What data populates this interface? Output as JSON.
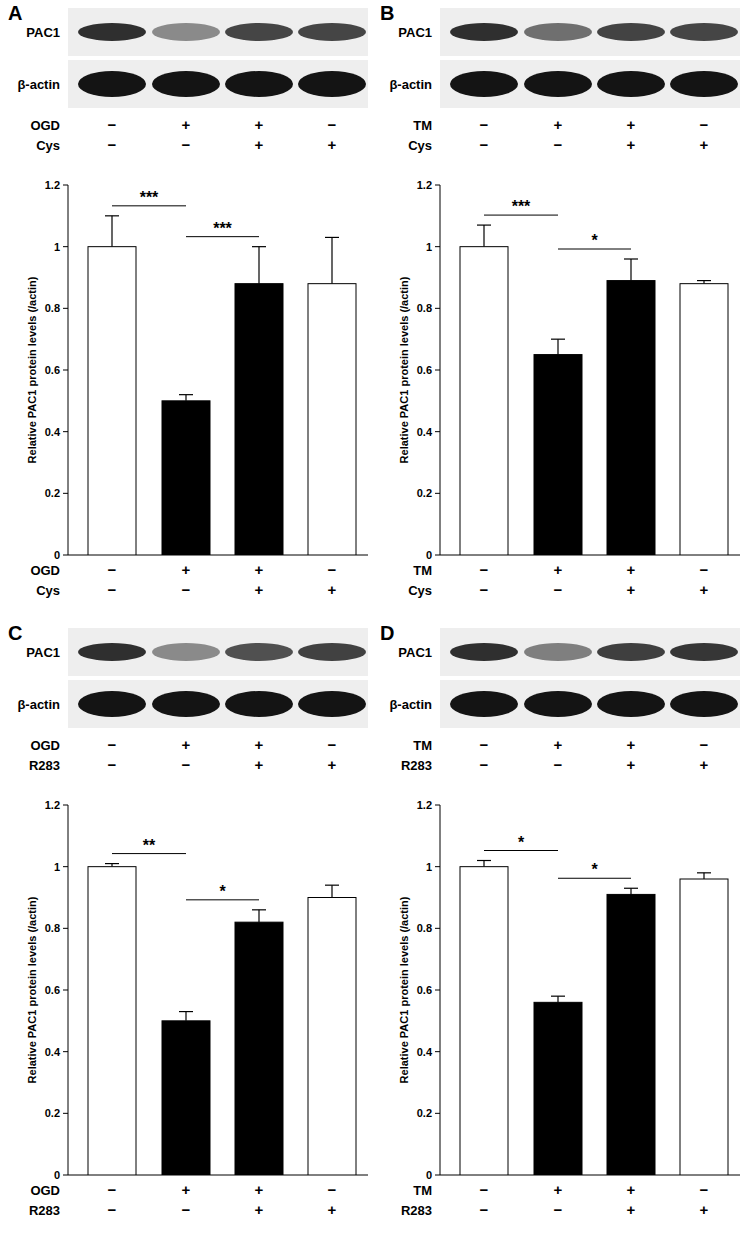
{
  "chart_data": [
    {
      "type": "bar",
      "panel": "A",
      "blots": [
        "PAC1",
        "β-actin"
      ],
      "y_label": "Relative PAC1 protein levels (/actin)",
      "categories": [
        null,
        null,
        null,
        null
      ],
      "treatments": [
        {
          "name": "OGD",
          "signs": [
            "−",
            "+",
            "+",
            "−"
          ]
        },
        {
          "name": "Cys",
          "signs": [
            "−",
            "−",
            "+",
            "+"
          ]
        }
      ],
      "values": [
        1.0,
        0.5,
        0.88,
        0.88
      ],
      "errors": [
        0.1,
        0.02,
        0.12,
        0.15
      ],
      "colors": [
        "#ffffff",
        "#000000",
        "#000000",
        "#ffffff"
      ],
      "significance": [
        {
          "from": 0,
          "to": 1,
          "label": "***"
        },
        {
          "from": 1,
          "to": 2,
          "label": "***"
        }
      ],
      "ylim": [
        0,
        1.2
      ],
      "yticks": [
        0,
        0.2,
        0.4,
        0.6,
        0.8,
        1,
        1.2
      ]
    },
    {
      "type": "bar",
      "panel": "B",
      "blots": [
        "PAC1",
        "β-actin"
      ],
      "y_label": "Relative PAC1 protein levels (/actin)",
      "categories": [
        null,
        null,
        null,
        null
      ],
      "treatments": [
        {
          "name": "TM",
          "signs": [
            "−",
            "+",
            "+",
            "−"
          ]
        },
        {
          "name": "Cys",
          "signs": [
            "−",
            "−",
            "+",
            "+"
          ]
        }
      ],
      "values": [
        1.0,
        0.65,
        0.89,
        0.88
      ],
      "errors": [
        0.07,
        0.05,
        0.07,
        0.01
      ],
      "colors": [
        "#ffffff",
        "#000000",
        "#000000",
        "#ffffff"
      ],
      "significance": [
        {
          "from": 0,
          "to": 1,
          "label": "***"
        },
        {
          "from": 1,
          "to": 2,
          "label": "*"
        }
      ],
      "ylim": [
        0,
        1.2
      ],
      "yticks": [
        0,
        0.2,
        0.4,
        0.6,
        0.8,
        1,
        1.2
      ]
    },
    {
      "type": "bar",
      "panel": "C",
      "blots": [
        "PAC1",
        "β-actin"
      ],
      "y_label": "Relative PAC1 protein levels (/actin)",
      "categories": [
        null,
        null,
        null,
        null
      ],
      "treatments": [
        {
          "name": "OGD",
          "signs": [
            "−",
            "+",
            "+",
            "−"
          ]
        },
        {
          "name": "R283",
          "signs": [
            "−",
            "−",
            "+",
            "+"
          ]
        }
      ],
      "values": [
        1.0,
        0.5,
        0.82,
        0.9
      ],
      "errors": [
        0.01,
        0.03,
        0.04,
        0.04
      ],
      "colors": [
        "#ffffff",
        "#000000",
        "#000000",
        "#ffffff"
      ],
      "significance": [
        {
          "from": 0,
          "to": 1,
          "label": "**"
        },
        {
          "from": 1,
          "to": 2,
          "label": "*"
        }
      ],
      "ylim": [
        0,
        1.2
      ],
      "yticks": [
        0,
        0.2,
        0.4,
        0.6,
        0.8,
        1,
        1.2
      ]
    },
    {
      "type": "bar",
      "panel": "D",
      "blots": [
        "PAC1",
        "β-actin"
      ],
      "y_label": "Relative PAC1 protein levels (/actin)",
      "categories": [
        null,
        null,
        null,
        null
      ],
      "treatments": [
        {
          "name": "TM",
          "signs": [
            "−",
            "+",
            "+",
            "−"
          ]
        },
        {
          "name": "R283",
          "signs": [
            "−",
            "−",
            "+",
            "+"
          ]
        }
      ],
      "values": [
        1.0,
        0.56,
        0.91,
        0.96
      ],
      "errors": [
        0.02,
        0.02,
        0.02,
        0.02
      ],
      "colors": [
        "#ffffff",
        "#000000",
        "#000000",
        "#ffffff"
      ],
      "significance": [
        {
          "from": 0,
          "to": 1,
          "label": "*"
        },
        {
          "from": 1,
          "to": 2,
          "label": "*"
        }
      ],
      "ylim": [
        0,
        1.2
      ],
      "yticks": [
        0,
        0.2,
        0.4,
        0.6,
        0.8,
        1,
        1.2
      ]
    }
  ]
}
